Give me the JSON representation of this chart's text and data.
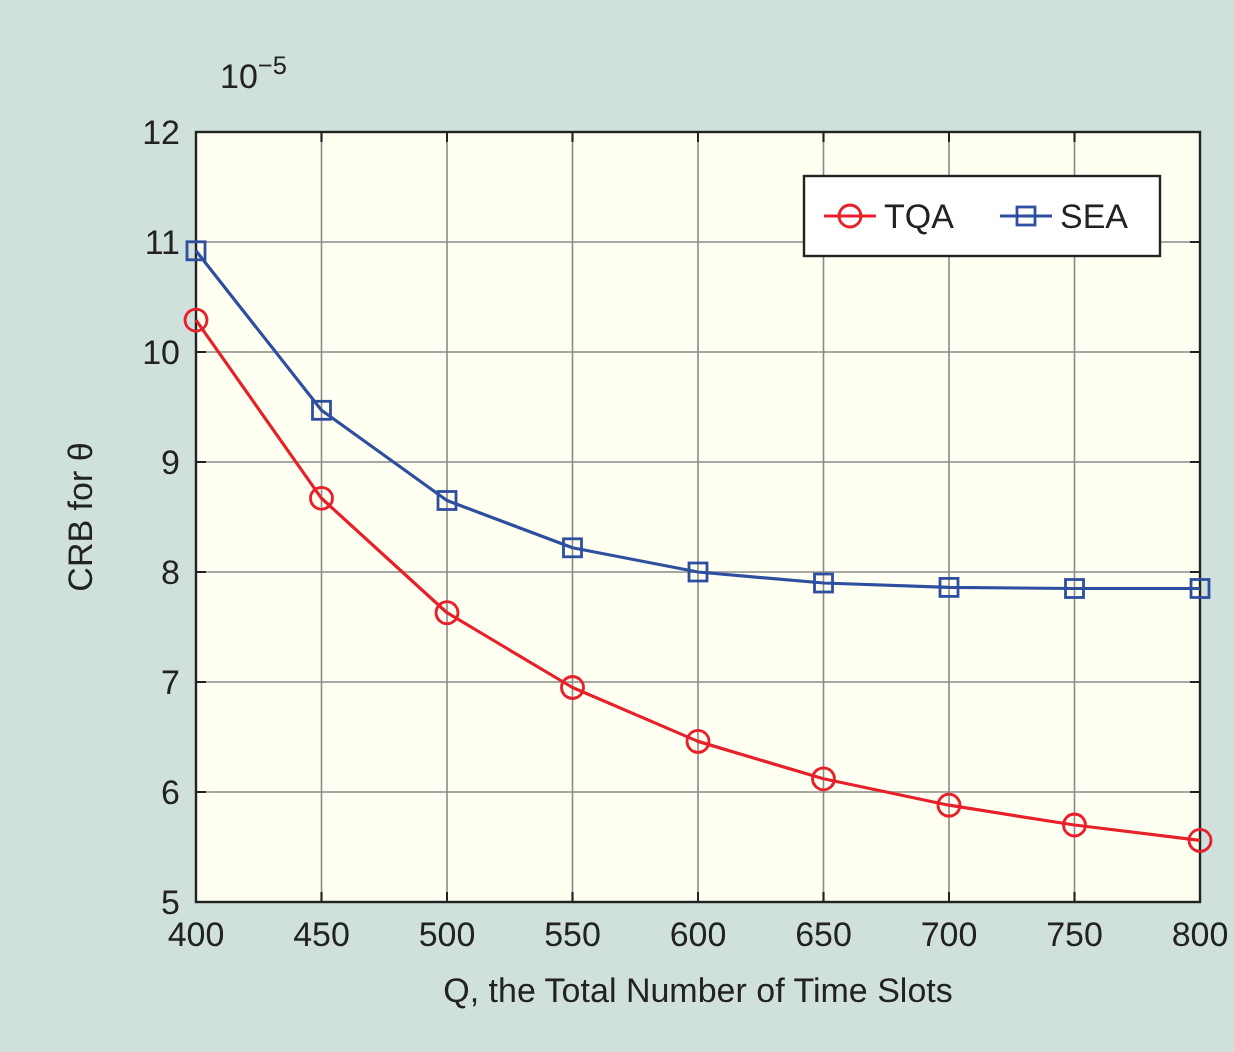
{
  "chart_data": {
    "type": "line",
    "xlabel": "Q, the Total Number of Time Slots",
    "ylabel": "CRB for θ",
    "annotations": [
      "10$^{−5}$"
    ],
    "x": [
      400,
      450,
      500,
      550,
      600,
      650,
      700,
      750,
      800
    ],
    "series": [
      {
        "name": "TQA",
        "color": "#e8202a",
        "marker": "circle",
        "values": [
          10.29,
          8.67,
          7.63,
          6.95,
          6.46,
          6.12,
          5.88,
          5.7,
          5.56
        ]
      },
      {
        "name": "SEA",
        "color": "#2e4fa0",
        "marker": "square",
        "values": [
          10.92,
          9.47,
          8.65,
          8.22,
          8.0,
          7.9,
          7.86,
          7.85,
          7.85
        ]
      }
    ],
    "xlim": [
      400,
      800
    ],
    "xticks": [
      400,
      450,
      500,
      550,
      600,
      650,
      700,
      750,
      800
    ],
    "ylim": [
      5,
      12
    ],
    "yticks": [
      5,
      6,
      7,
      8,
      9,
      10,
      11,
      12
    ],
    "grid": true,
    "legend": "top right",
    "line_style": "solid"
  }
}
